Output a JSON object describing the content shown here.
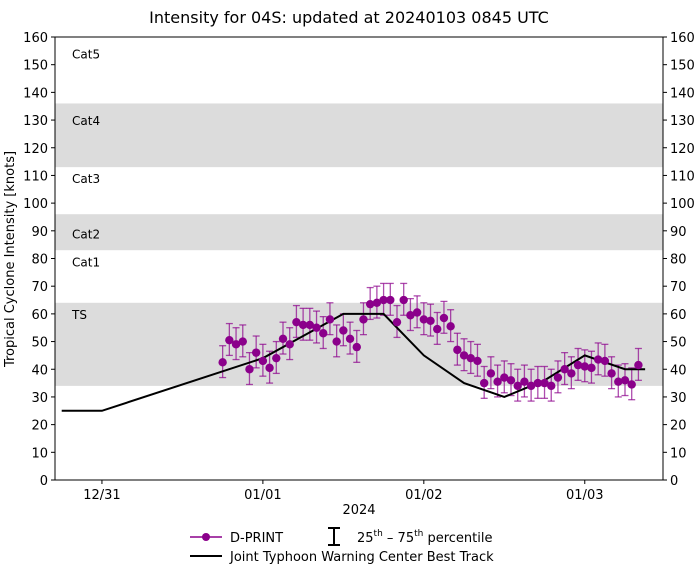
{
  "chart_data": {
    "type": "line",
    "title": "Intensity for 04S: updated at 20240103 0845 UTC",
    "ylabel": "Tropical Cyclone Intensity [knots]",
    "xlabel": "2024",
    "ylim": [
      0,
      160
    ],
    "xlim": [
      "2023-12-30T17:00Z",
      "2024-01-03T11:40Z"
    ],
    "yticks": [
      0,
      10,
      20,
      30,
      40,
      50,
      60,
      70,
      80,
      90,
      100,
      110,
      120,
      130,
      140,
      150,
      160
    ],
    "xticks": [
      {
        "t": "2023-12-31T00:00Z",
        "label": "12/31"
      },
      {
        "t": "2024-01-01T00:00Z",
        "label": "01/01"
      },
      {
        "t": "2024-01-02T00:00Z",
        "label": "01/02"
      },
      {
        "t": "2024-01-03T00:00Z",
        "label": "01/03"
      }
    ],
    "grid": false,
    "bands": [
      {
        "label": "TS",
        "from": 34,
        "to": 64,
        "shaded": true,
        "label_y": 60
      },
      {
        "label": "Cat1",
        "from": 64,
        "to": 83,
        "shaded": false,
        "label_y": 79
      },
      {
        "label": "Cat2",
        "from": 83,
        "to": 96,
        "shaded": true,
        "label_y": 89
      },
      {
        "label": "Cat3",
        "from": 96,
        "to": 113,
        "shaded": false,
        "label_y": 109
      },
      {
        "label": "Cat4",
        "from": 113,
        "to": 136,
        "shaded": true,
        "label_y": 130
      },
      {
        "label": "Cat5",
        "from": 136,
        "to": 160,
        "shaded": false,
        "label_y": 154
      }
    ],
    "band_color": "#dcdcdc",
    "series": [
      {
        "name": "D-PRINT",
        "color": "#8b008b",
        "start": "2023-12-31T18:00Z",
        "step_hours": 1,
        "values": [
          42.5,
          50.5,
          49,
          50,
          40,
          46,
          43,
          40.5,
          44,
          51,
          49,
          57,
          56,
          56,
          55,
          53,
          58,
          50,
          54,
          51,
          48,
          58,
          63.5,
          64,
          65,
          65,
          57,
          65,
          59.5,
          60.5,
          58,
          57.5,
          54.5,
          58.5,
          55.5,
          47,
          45,
          44,
          43,
          35,
          38.5,
          35.5,
          37,
          36,
          34,
          35.5,
          34,
          35,
          35,
          34,
          37,
          40,
          38.5,
          41.5,
          41,
          40.5,
          43.5,
          43,
          38.5,
          35.5,
          36,
          34.5,
          41.5
        ],
        "p25_offset": -5.5,
        "p75_offset": 6
      },
      {
        "name": "Joint Typhoon Warning Center Best Track",
        "color": "#000000",
        "points": [
          [
            "2023-12-30T18:00Z",
            25
          ],
          [
            "2023-12-31T00:00Z",
            25
          ],
          [
            "2024-01-01T00:00Z",
            44
          ],
          [
            "2024-01-01T06:00Z",
            52
          ],
          [
            "2024-01-01T12:00Z",
            60
          ],
          [
            "2024-01-01T18:00Z",
            60
          ],
          [
            "2024-01-02T00:00Z",
            45
          ],
          [
            "2024-01-02T06:00Z",
            35
          ],
          [
            "2024-01-02T12:00Z",
            30
          ],
          [
            "2024-01-02T18:00Z",
            36
          ],
          [
            "2024-01-03T00:00Z",
            45
          ],
          [
            "2024-01-03T06:00Z",
            40
          ],
          [
            "2024-01-03T09:00Z",
            40
          ]
        ]
      }
    ],
    "legend": {
      "position": "bottom",
      "dprint": "D-PRINT",
      "percentile_prefix": "25",
      "percentile_mid": "th",
      "percentile_dash": " – 75",
      "percentile_suffix": "th",
      "percentile_word": " percentile",
      "best_track": "Joint Typhoon Warning Center Best Track"
    }
  }
}
